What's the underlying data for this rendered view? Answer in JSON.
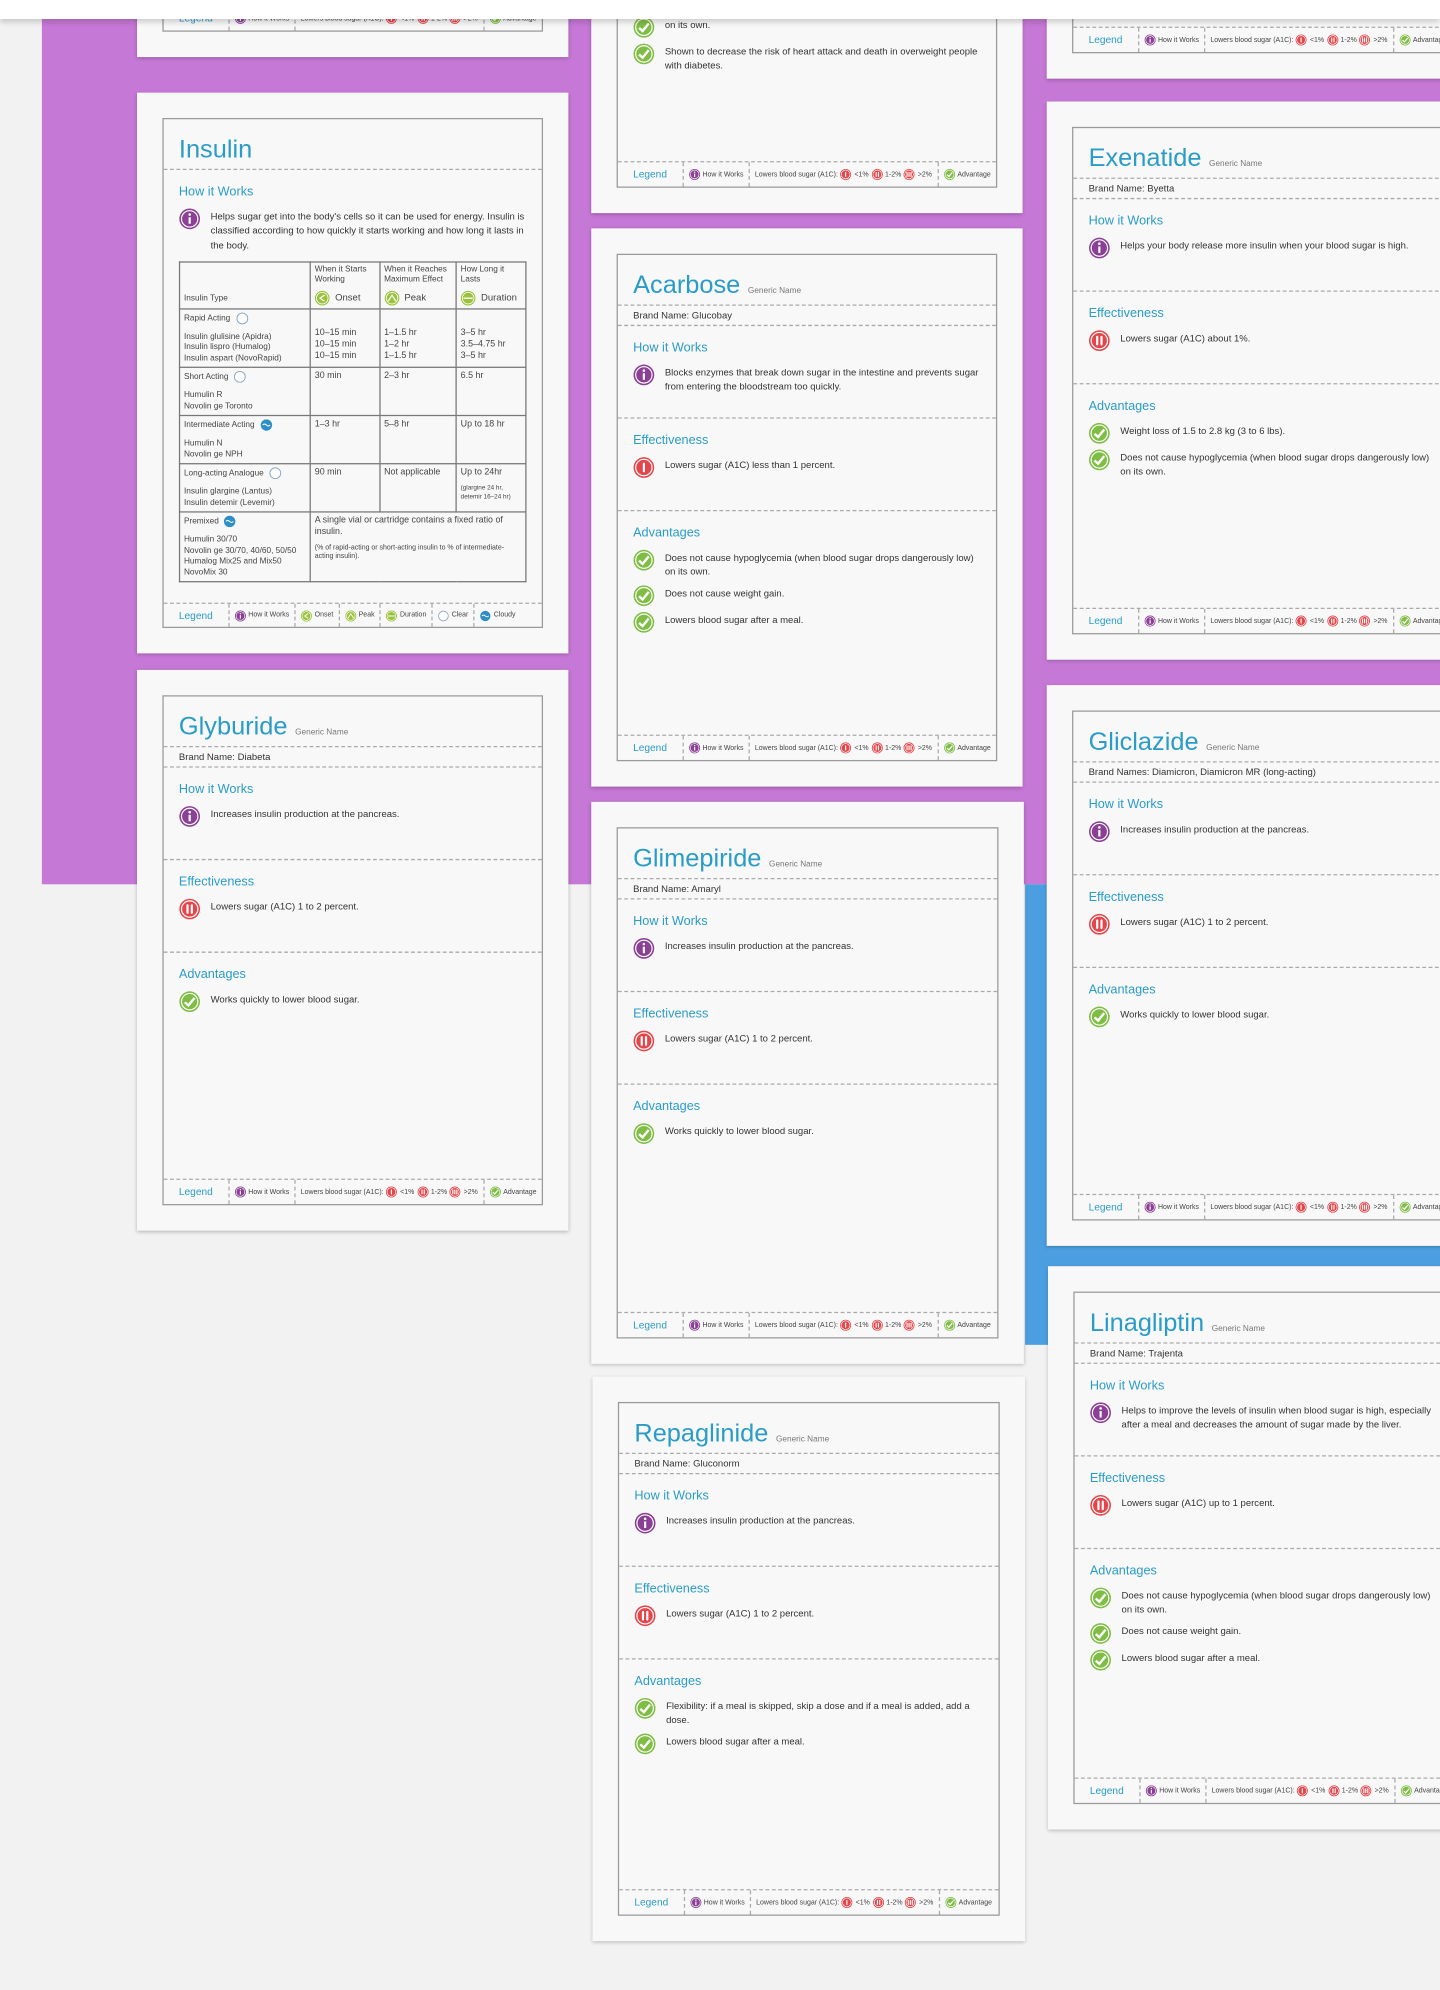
{
  "legend": {
    "title": "Legend",
    "how": "How it Works",
    "lowers": "Lowers blood sugar (A1C):",
    "levels": [
      "<1%",
      "1-2%",
      ">2%"
    ],
    "advantage": "Advantage"
  },
  "insulin_legend": {
    "title": "Legend",
    "items": [
      "How it Works",
      "Onset",
      "Peak",
      "Duration",
      "Clear",
      "Cloudy"
    ]
  },
  "fragment": {
    "items": [
      {
        "icon": "check",
        "text": "on its own."
      },
      {
        "icon": "check",
        "text": "Shown to decrease the risk of heart attack and death in overweight people with diabetes."
      }
    ]
  },
  "cards": [
    {
      "title": "Insulin",
      "sections": [
        {
          "heading": "How it Works",
          "items": [
            {
              "icon": "info",
              "text": "Helps sugar get into the body's cells so it can be used for energy. Insulin is classified according to how quickly it starts working and how long it lasts in the body."
            }
          ]
        }
      ],
      "table": {
        "header": [
          "Insulin Type",
          "When it Starts Working",
          "When it Reaches Maximum Effect",
          "How Long it Lasts"
        ],
        "header_icons": [
          "Onset",
          "Peak",
          "Duration"
        ],
        "rows": [
          {
            "type": "Rapid Acting",
            "icon": "clear",
            "names": [
              "Insulin glulisine (Apidra)",
              "Insulin lispro (Humalog)",
              "Insulin aspart (NovoRapid)"
            ],
            "onset": [
              "10–15 min",
              "10–15 min",
              "10–15 min"
            ],
            "peak": [
              "1–1.5 hr",
              "1–2 hr",
              "1–1.5 hr"
            ],
            "duration": [
              "3–5 hr",
              "3.5–4.75 hr",
              "3–5 hr"
            ]
          },
          {
            "type": "Short Acting",
            "icon": "clear",
            "names": [
              "Humulin R",
              "Novolin ge Toronto"
            ],
            "onset": [
              "30 min"
            ],
            "peak": [
              "2–3 hr"
            ],
            "duration": [
              "6.5 hr"
            ]
          },
          {
            "type": "Intermediate Acting",
            "icon": "cloudy",
            "names": [
              "Humulin N",
              "Novolin ge NPH"
            ],
            "onset": [
              "1–3 hr"
            ],
            "peak": [
              "5–8 hr"
            ],
            "duration": [
              "Up to 18 hr"
            ]
          },
          {
            "type": "Long-acting Analogue",
            "icon": "clear",
            "names": [
              "Insulin glargine (Lantus)",
              "Insulin detemir (Levemir)"
            ],
            "onset": [
              "90 min"
            ],
            "peak": [
              "Not applicable"
            ],
            "duration": [
              "Up to 24hr"
            ],
            "duration_note": "(glargine 24 hr, detemir 16–24 hr)"
          },
          {
            "type": "Premixed",
            "icon": "cloudy",
            "names": [
              "Humulin 30/70",
              "Novolin ge 30/70, 40/60, 50/50",
              "Humalog Mix25 and Mix50",
              "NovoMix 30"
            ],
            "note": [
              "A single vial or cartridge contains a fixed ratio of insulin.",
              "(% of rapid-acting or short-acting insulin to % of intermediate-acting insulin)."
            ]
          }
        ]
      }
    },
    {
      "title": "Acarbose",
      "generic": "Generic Name",
      "brand": "Brand Name: Glucobay",
      "sections": [
        {
          "heading": "How it Works",
          "items": [
            {
              "icon": "info",
              "text": "Blocks enzymes that break down sugar in the intestine and prevents sugar from entering the bloodstream too quickly."
            }
          ]
        },
        {
          "heading": "Effectiveness",
          "items": [
            {
              "icon": "one",
              "text": "Lowers sugar (A1C) less than 1 percent."
            }
          ]
        },
        {
          "heading": "Advantages",
          "items": [
            {
              "icon": "check",
              "text": "Does not cause hypoglycemia (when blood sugar drops dangerously low) on its own."
            },
            {
              "icon": "check",
              "text": "Does not cause weight gain."
            },
            {
              "icon": "check",
              "text": "Lowers blood sugar after a meal."
            }
          ]
        }
      ]
    },
    {
      "title": "Glyburide",
      "generic": "Generic Name",
      "brand": "Brand Name: Diabeta",
      "sections": [
        {
          "heading": "How it Works",
          "items": [
            {
              "icon": "info",
              "text": "Increases insulin production at the pancreas."
            }
          ]
        },
        {
          "heading": "Effectiveness",
          "items": [
            {
              "icon": "two",
              "text": "Lowers sugar (A1C) 1 to 2 percent."
            }
          ]
        },
        {
          "heading": "Advantages",
          "items": [
            {
              "icon": "check",
              "text": "Works quickly to lower blood sugar."
            }
          ]
        }
      ]
    },
    {
      "title": "Glimepiride",
      "generic": "Generic Name",
      "brand": "Brand Name: Amaryl",
      "sections": [
        {
          "heading": "How it Works",
          "items": [
            {
              "icon": "info",
              "text": "Increases insulin production at the pancreas."
            }
          ]
        },
        {
          "heading": "Effectiveness",
          "items": [
            {
              "icon": "two",
              "text": "Lowers sugar (A1C) 1 to 2 percent."
            }
          ]
        },
        {
          "heading": "Advantages",
          "items": [
            {
              "icon": "check",
              "text": "Works quickly to lower blood sugar."
            }
          ]
        }
      ]
    },
    {
      "title": "Repaglinide",
      "generic": "Generic Name",
      "brand": "Brand Name: Gluconorm",
      "sections": [
        {
          "heading": "How it Works",
          "items": [
            {
              "icon": "info",
              "text": "Increases insulin production at the pancreas."
            }
          ]
        },
        {
          "heading": "Effectiveness",
          "items": [
            {
              "icon": "two",
              "text": "Lowers sugar (A1C) 1 to 2 percent."
            }
          ]
        },
        {
          "heading": "Advantages",
          "items": [
            {
              "icon": "check",
              "text": "Flexibility: if a meal is skipped, skip a dose and if a meal is added, add a dose."
            },
            {
              "icon": "check",
              "text": "Lowers blood sugar after a meal."
            }
          ]
        }
      ]
    },
    {
      "title": "Exenatide",
      "generic": "Generic Name",
      "brand": "Brand Name: Byetta",
      "sections": [
        {
          "heading": "How it Works",
          "items": [
            {
              "icon": "info",
              "text": "Helps your body release more insulin when your blood sugar is high."
            }
          ]
        },
        {
          "heading": "Effectiveness",
          "items": [
            {
              "icon": "two",
              "text": "Lowers sugar (A1C) about 1%."
            }
          ]
        },
        {
          "heading": "Advantages",
          "items": [
            {
              "icon": "check",
              "text": "Weight loss of 1.5 to 2.8 kg (3 to 6 lbs)."
            },
            {
              "icon": "check",
              "text": "Does not cause hypoglycemia (when blood sugar drops dangerously low) on its own."
            }
          ]
        }
      ]
    },
    {
      "title": "Gliclazide",
      "generic": "Generic Name",
      "brand": "Brand Names: Diamicron, Diamicron MR (long-acting)",
      "sections": [
        {
          "heading": "How it Works",
          "items": [
            {
              "icon": "info",
              "text": "Increases insulin production at the pancreas."
            }
          ]
        },
        {
          "heading": "Effectiveness",
          "items": [
            {
              "icon": "two",
              "text": "Lowers sugar (A1C) 1 to 2 percent."
            }
          ]
        },
        {
          "heading": "Advantages",
          "items": [
            {
              "icon": "check",
              "text": "Works quickly to lower blood sugar."
            }
          ]
        }
      ]
    },
    {
      "title": "Linagliptin",
      "generic": "Generic Name",
      "brand": "Brand Name: Trajenta",
      "sections": [
        {
          "heading": "How it Works",
          "items": [
            {
              "icon": "info",
              "text": "Helps to improve the levels of insulin when blood sugar is high, especially after a meal and decreases the amount of sugar made by the liver."
            }
          ]
        },
        {
          "heading": "Effectiveness",
          "items": [
            {
              "icon": "two",
              "text": "Lowers sugar (A1C) up to 1 percent."
            }
          ]
        },
        {
          "heading": "Advantages",
          "items": [
            {
              "icon": "check",
              "text": "Does not cause hypoglycemia (when blood sugar drops dangerously low) on its own."
            },
            {
              "icon": "check",
              "text": "Does not cause weight gain."
            },
            {
              "icon": "check",
              "text": "Lowers blood sugar after a meal."
            }
          ]
        }
      ]
    }
  ]
}
